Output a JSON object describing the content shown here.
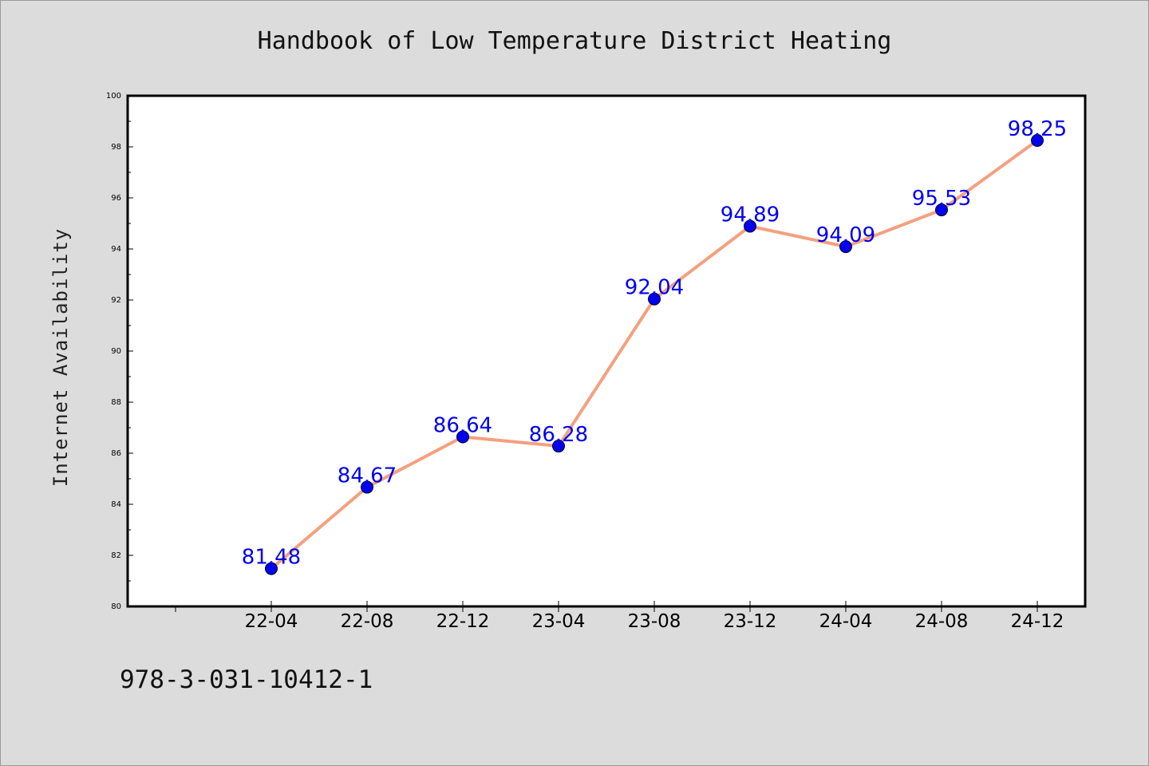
{
  "title": "Handbook of Low Temperature District Heating",
  "footer": "978-3-031-10412-1",
  "chart_data": {
    "type": "line",
    "title": "Handbook of Low Temperature District Heating",
    "xlabel": "",
    "ylabel": "Internet Availability",
    "categories": [
      "22-04",
      "22-08",
      "22-12",
      "23-04",
      "23-08",
      "23-12",
      "24-04",
      "24-08",
      "24-12"
    ],
    "series": [
      {
        "values": [
          81.48,
          84.67,
          86.64,
          86.28,
          92.04,
          94.89,
          94.09,
          95.53,
          98.25
        ]
      }
    ],
    "data_labels": [
      "81.48",
      "84.67",
      "86.64",
      "86.28",
      "92.04",
      "94.89",
      "94.09",
      "95.53",
      "98.25"
    ],
    "ylim": [
      80,
      100
    ],
    "yticks": [
      "80",
      "82",
      "84",
      "86",
      "88",
      "90",
      "92",
      "94",
      "96",
      "98",
      "100"
    ],
    "grid": false,
    "line_color": "#f4a07f",
    "marker_color": "#0000ee",
    "label_color": "#0000ee"
  }
}
